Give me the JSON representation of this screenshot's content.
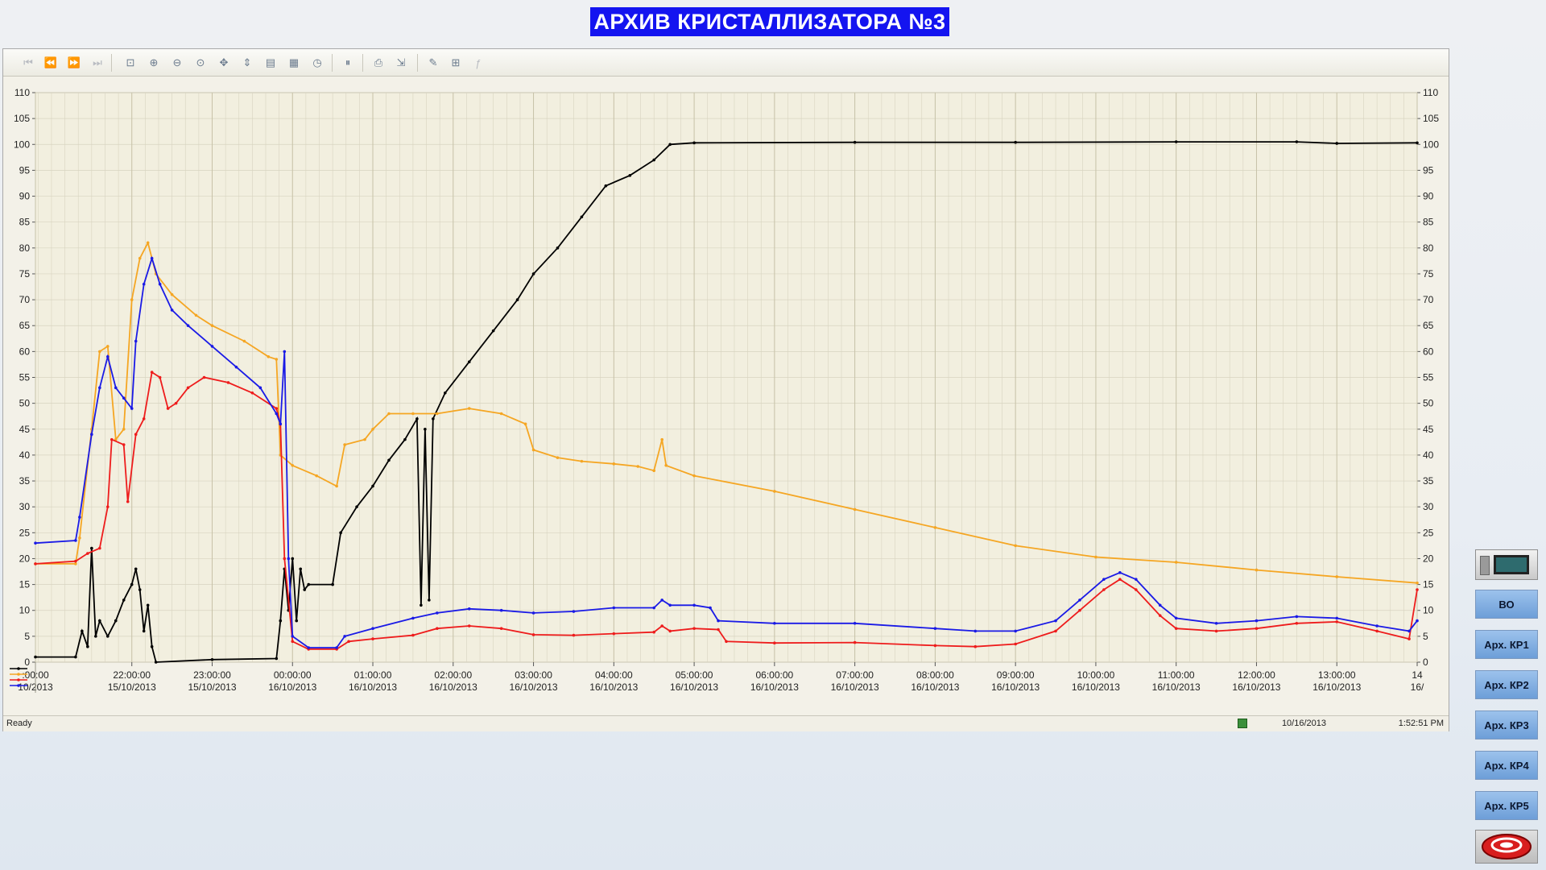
{
  "title": "АРХИВ КРИСТАЛЛИЗАТОРА №3",
  "toolbar": {
    "icons": [
      "first-page-icon",
      "previous-page-icon",
      "next-page-icon",
      "last-page-icon",
      "zoom-box-icon",
      "zoom-in-icon",
      "zoom-out-icon",
      "zoom-fit-icon",
      "pan-icon",
      "y-axis-scale-icon",
      "properties-icon",
      "grid-icon",
      "time-icon",
      "pause-icon",
      "print-icon",
      "export-icon",
      "add-pen-icon",
      "axes-icon",
      "function-icon"
    ]
  },
  "status": {
    "text": "Ready",
    "date": "10/16/2013",
    "time": "1:52:51 PM"
  },
  "side_buttons": {
    "bo": "ВО",
    "kr1": "Арх. КР1",
    "kr2": "Арх. КР2",
    "kr3": "Арх. КР3",
    "kr4": "Арх. КР4",
    "kr5": "Арх. КР5"
  },
  "colors": {
    "black": "#000000",
    "orange": "#f5a623",
    "red": "#ee1c1c",
    "blue": "#1a1ae6",
    "title_bg": "#1414f0",
    "plot_bg": "#f2efdf",
    "grid": "#d8d4c0"
  },
  "chart_data": {
    "type": "line",
    "ylim": [
      0,
      110
    ],
    "yticks": [
      0,
      5,
      10,
      15,
      20,
      25,
      30,
      35,
      40,
      45,
      50,
      55,
      60,
      65,
      70,
      75,
      80,
      85,
      90,
      95,
      100,
      105,
      110
    ],
    "x_range_hours": [
      -3.2,
      14.0
    ],
    "x_ticks": [
      {
        "top": ":00:00",
        "bottom": "10/2013",
        "h": -3.2
      },
      {
        "top": "22:00:00",
        "bottom": "15/10/2013",
        "h": -2
      },
      {
        "top": "23:00:00",
        "bottom": "15/10/2013",
        "h": -1
      },
      {
        "top": "00:00:00",
        "bottom": "16/10/2013",
        "h": 0
      },
      {
        "top": "01:00:00",
        "bottom": "16/10/2013",
        "h": 1
      },
      {
        "top": "02:00:00",
        "bottom": "16/10/2013",
        "h": 2
      },
      {
        "top": "03:00:00",
        "bottom": "16/10/2013",
        "h": 3
      },
      {
        "top": "04:00:00",
        "bottom": "16/10/2013",
        "h": 4
      },
      {
        "top": "05:00:00",
        "bottom": "16/10/2013",
        "h": 5
      },
      {
        "top": "06:00:00",
        "bottom": "16/10/2013",
        "h": 6
      },
      {
        "top": "07:00:00",
        "bottom": "16/10/2013",
        "h": 7
      },
      {
        "top": "08:00:00",
        "bottom": "16/10/2013",
        "h": 8
      },
      {
        "top": "09:00:00",
        "bottom": "16/10/2013",
        "h": 9
      },
      {
        "top": "10:00:00",
        "bottom": "16/10/2013",
        "h": 10
      },
      {
        "top": "11:00:00",
        "bottom": "16/10/2013",
        "h": 11
      },
      {
        "top": "12:00:00",
        "bottom": "16/10/2013",
        "h": 12
      },
      {
        "top": "13:00:00",
        "bottom": "16/10/2013",
        "h": 13
      },
      {
        "top": "14",
        "bottom": "16/",
        "h": 14
      }
    ],
    "series": [
      {
        "color": "#000000",
        "points": [
          [
            -3.2,
            1
          ],
          [
            -2.7,
            1
          ],
          [
            -2.62,
            6
          ],
          [
            -2.55,
            3
          ],
          [
            -2.5,
            22
          ],
          [
            -2.45,
            5
          ],
          [
            -2.4,
            8
          ],
          [
            -2.3,
            5
          ],
          [
            -2.2,
            8
          ],
          [
            -2.1,
            12
          ],
          [
            -2.0,
            15
          ],
          [
            -1.95,
            18
          ],
          [
            -1.9,
            14
          ],
          [
            -1.85,
            6
          ],
          [
            -1.8,
            11
          ],
          [
            -1.75,
            3
          ],
          [
            -1.7,
            0
          ],
          [
            -1.0,
            0.5
          ],
          [
            -0.2,
            0.7
          ],
          [
            -0.15,
            8
          ],
          [
            -0.1,
            18
          ],
          [
            -0.05,
            10
          ],
          [
            0.0,
            20
          ],
          [
            0.05,
            8
          ],
          [
            0.1,
            18
          ],
          [
            0.15,
            14
          ],
          [
            0.2,
            15
          ],
          [
            0.5,
            15
          ],
          [
            0.6,
            25
          ],
          [
            0.8,
            30
          ],
          [
            1.0,
            34
          ],
          [
            1.2,
            39
          ],
          [
            1.4,
            43
          ],
          [
            1.55,
            47
          ],
          [
            1.6,
            11
          ],
          [
            1.65,
            45
          ],
          [
            1.7,
            12
          ],
          [
            1.75,
            47
          ],
          [
            1.9,
            52
          ],
          [
            2.2,
            58
          ],
          [
            2.5,
            64
          ],
          [
            2.8,
            70
          ],
          [
            3.0,
            75
          ],
          [
            3.3,
            80
          ],
          [
            3.6,
            86
          ],
          [
            3.9,
            92
          ],
          [
            4.2,
            94
          ],
          [
            4.5,
            97
          ],
          [
            4.7,
            100
          ],
          [
            5.0,
            100.3
          ],
          [
            7.0,
            100.4
          ],
          [
            9.0,
            100.4
          ],
          [
            11.0,
            100.5
          ],
          [
            12.5,
            100.5
          ],
          [
            13.0,
            100.2
          ],
          [
            14.0,
            100.3
          ]
        ]
      },
      {
        "color": "#f5a623",
        "points": [
          [
            -3.2,
            19
          ],
          [
            -2.7,
            19
          ],
          [
            -2.65,
            24
          ],
          [
            -2.5,
            45
          ],
          [
            -2.4,
            60
          ],
          [
            -2.3,
            61
          ],
          [
            -2.2,
            43
          ],
          [
            -2.1,
            45
          ],
          [
            -2.0,
            70
          ],
          [
            -1.9,
            78
          ],
          [
            -1.8,
            81
          ],
          [
            -1.7,
            75
          ],
          [
            -1.5,
            71
          ],
          [
            -1.2,
            67
          ],
          [
            -1.0,
            65
          ],
          [
            -0.6,
            62
          ],
          [
            -0.3,
            59
          ],
          [
            -0.2,
            58.5
          ],
          [
            -0.15,
            40
          ],
          [
            0.0,
            38
          ],
          [
            0.3,
            36
          ],
          [
            0.55,
            34
          ],
          [
            0.65,
            42
          ],
          [
            0.9,
            43
          ],
          [
            1.0,
            45
          ],
          [
            1.2,
            48
          ],
          [
            1.5,
            48
          ],
          [
            1.8,
            48
          ],
          [
            2.2,
            49
          ],
          [
            2.6,
            48
          ],
          [
            2.9,
            46
          ],
          [
            3.0,
            41
          ],
          [
            3.3,
            39.5
          ],
          [
            3.6,
            38.8
          ],
          [
            4.0,
            38.3
          ],
          [
            4.3,
            37.8
          ],
          [
            4.5,
            37
          ],
          [
            4.6,
            43
          ],
          [
            4.65,
            38
          ],
          [
            5.0,
            36
          ],
          [
            6.0,
            33
          ],
          [
            7.0,
            29.5
          ],
          [
            8.0,
            26
          ],
          [
            9.0,
            22.5
          ],
          [
            10.0,
            20.3
          ],
          [
            11.0,
            19.3
          ],
          [
            12.0,
            17.8
          ],
          [
            13.0,
            16.5
          ],
          [
            14.0,
            15.3
          ]
        ]
      },
      {
        "color": "#ee1c1c",
        "points": [
          [
            -3.2,
            19
          ],
          [
            -2.7,
            19.5
          ],
          [
            -2.55,
            21
          ],
          [
            -2.4,
            22
          ],
          [
            -2.3,
            30
          ],
          [
            -2.25,
            43
          ],
          [
            -2.1,
            42
          ],
          [
            -2.05,
            31
          ],
          [
            -1.95,
            44
          ],
          [
            -1.85,
            47
          ],
          [
            -1.75,
            56
          ],
          [
            -1.65,
            55
          ],
          [
            -1.55,
            49
          ],
          [
            -1.45,
            50
          ],
          [
            -1.3,
            53
          ],
          [
            -1.1,
            55
          ],
          [
            -0.8,
            54
          ],
          [
            -0.5,
            52
          ],
          [
            -0.2,
            49
          ],
          [
            -0.15,
            46
          ],
          [
            -0.1,
            20
          ],
          [
            0.0,
            4
          ],
          [
            0.2,
            2.5
          ],
          [
            0.55,
            2.5
          ],
          [
            0.7,
            4
          ],
          [
            1.0,
            4.5
          ],
          [
            1.5,
            5.2
          ],
          [
            1.8,
            6.5
          ],
          [
            2.2,
            7
          ],
          [
            2.6,
            6.5
          ],
          [
            3.0,
            5.3
          ],
          [
            3.5,
            5.2
          ],
          [
            4.0,
            5.5
          ],
          [
            4.5,
            5.8
          ],
          [
            4.6,
            7
          ],
          [
            4.7,
            6
          ],
          [
            5.0,
            6.5
          ],
          [
            5.3,
            6.3
          ],
          [
            5.4,
            4
          ],
          [
            6.0,
            3.7
          ],
          [
            7.0,
            3.8
          ],
          [
            8.0,
            3.2
          ],
          [
            8.5,
            3
          ],
          [
            9.0,
            3.5
          ],
          [
            9.5,
            6
          ],
          [
            9.8,
            10
          ],
          [
            10.1,
            14
          ],
          [
            10.3,
            16
          ],
          [
            10.5,
            14
          ],
          [
            10.8,
            9
          ],
          [
            11.0,
            6.5
          ],
          [
            11.5,
            6
          ],
          [
            12.0,
            6.5
          ],
          [
            12.5,
            7.5
          ],
          [
            13.0,
            7.8
          ],
          [
            13.5,
            6
          ],
          [
            13.9,
            4.5
          ],
          [
            14.0,
            14
          ]
        ]
      },
      {
        "color": "#1a1ae6",
        "points": [
          [
            -3.2,
            23
          ],
          [
            -2.7,
            23.5
          ],
          [
            -2.65,
            28
          ],
          [
            -2.5,
            44
          ],
          [
            -2.4,
            53
          ],
          [
            -2.3,
            59
          ],
          [
            -2.2,
            53
          ],
          [
            -2.1,
            51
          ],
          [
            -2.0,
            49
          ],
          [
            -1.95,
            62
          ],
          [
            -1.85,
            73
          ],
          [
            -1.75,
            78
          ],
          [
            -1.65,
            73
          ],
          [
            -1.5,
            68
          ],
          [
            -1.3,
            65
          ],
          [
            -1.0,
            61
          ],
          [
            -0.7,
            57
          ],
          [
            -0.4,
            53
          ],
          [
            -0.2,
            48
          ],
          [
            -0.15,
            46
          ],
          [
            -0.1,
            60
          ],
          [
            -0.05,
            20
          ],
          [
            0.0,
            5
          ],
          [
            0.2,
            2.8
          ],
          [
            0.55,
            2.8
          ],
          [
            0.65,
            5
          ],
          [
            1.0,
            6.5
          ],
          [
            1.5,
            8.5
          ],
          [
            1.8,
            9.5
          ],
          [
            2.2,
            10.3
          ],
          [
            2.6,
            10
          ],
          [
            3.0,
            9.5
          ],
          [
            3.5,
            9.8
          ],
          [
            4.0,
            10.5
          ],
          [
            4.5,
            10.5
          ],
          [
            4.6,
            12
          ],
          [
            4.7,
            11
          ],
          [
            5.0,
            11
          ],
          [
            5.2,
            10.5
          ],
          [
            5.3,
            8
          ],
          [
            6.0,
            7.5
          ],
          [
            7.0,
            7.5
          ],
          [
            8.0,
            6.5
          ],
          [
            8.5,
            6
          ],
          [
            9.0,
            6
          ],
          [
            9.5,
            8
          ],
          [
            9.8,
            12
          ],
          [
            10.1,
            16
          ],
          [
            10.3,
            17.3
          ],
          [
            10.5,
            16
          ],
          [
            10.8,
            11
          ],
          [
            11.0,
            8.5
          ],
          [
            11.5,
            7.5
          ],
          [
            12.0,
            8
          ],
          [
            12.5,
            8.8
          ],
          [
            13.0,
            8.5
          ],
          [
            13.5,
            7
          ],
          [
            13.9,
            6
          ],
          [
            14.0,
            8
          ]
        ]
      }
    ]
  }
}
